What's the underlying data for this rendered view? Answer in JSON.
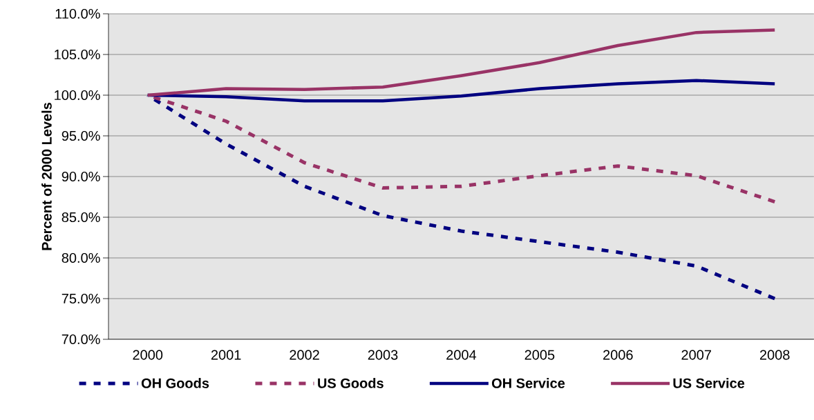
{
  "chart_data": {
    "type": "line",
    "ylabel": "Percent of 2000 Levels",
    "categories": [
      "2000",
      "2001",
      "2002",
      "2003",
      "2004",
      "2005",
      "2006",
      "2007",
      "2008"
    ],
    "series": [
      {
        "name": "OH Goods",
        "color": "#000080",
        "line_style": "dashed",
        "values": [
          100,
          94.0,
          88.8,
          85.2,
          83.3,
          82.0,
          80.7,
          79.0,
          75.0
        ]
      },
      {
        "name": "US Goods",
        "color": "#993366",
        "line_style": "dashed",
        "values": [
          100,
          96.8,
          91.7,
          88.6,
          88.8,
          90.1,
          91.3,
          90.1,
          86.9
        ]
      },
      {
        "name": "OH Service",
        "color": "#000080",
        "line_style": "solid",
        "values": [
          100,
          99.8,
          99.3,
          99.3,
          99.9,
          100.8,
          101.4,
          101.8,
          101.4
        ]
      },
      {
        "name": "US Service",
        "color": "#993366",
        "line_style": "solid",
        "values": [
          100,
          100.8,
          100.7,
          101.0,
          102.4,
          104.0,
          106.1,
          107.7,
          108.0
        ]
      }
    ],
    "ylim": [
      70,
      110
    ],
    "yticks": [
      {
        "value": 70,
        "label": "70.0%"
      },
      {
        "value": 75,
        "label": "75.0%"
      },
      {
        "value": 80,
        "label": "80.0%"
      },
      {
        "value": 85,
        "label": "85.0%"
      },
      {
        "value": 90,
        "label": "90.0%"
      },
      {
        "value": 95,
        "label": "95.0%"
      },
      {
        "value": 100,
        "label": "100.0%"
      },
      {
        "value": 105,
        "label": "105.0%"
      },
      {
        "value": 110,
        "label": "110.0%"
      }
    ],
    "grid": "y",
    "legend": "bottom",
    "marker": "none"
  }
}
